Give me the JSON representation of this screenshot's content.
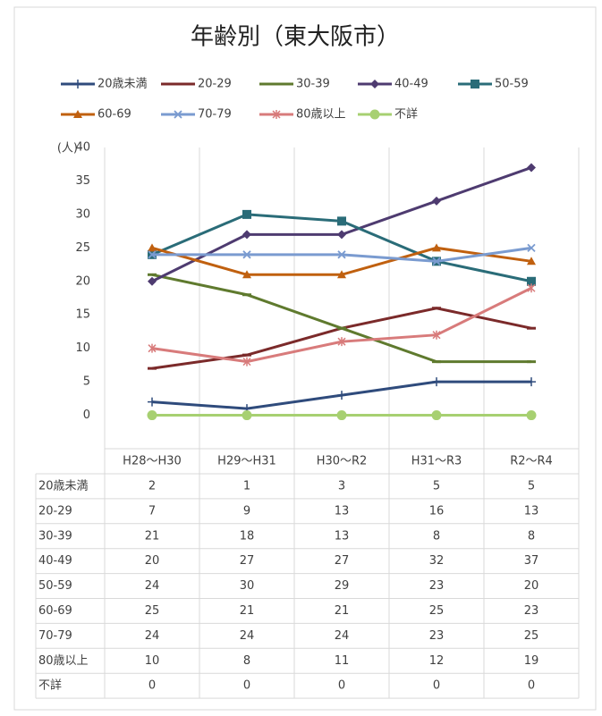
{
  "chart_data": {
    "type": "line",
    "title": "年齢別（東大阪市）",
    "ylabel": "(人)",
    "categories": [
      "H28～H30",
      "H29～H31",
      "H30～R2",
      "H31～R3",
      "R2～R4"
    ],
    "ylim": [
      -5,
      40
    ],
    "yticks": [
      0,
      5,
      10,
      15,
      20,
      25,
      30,
      35,
      40
    ],
    "grid": false,
    "legend": "top",
    "series": [
      {
        "name": "20歳未満",
        "color": "#2f4b7c",
        "marker": "plus",
        "values": [
          2,
          1,
          3,
          5,
          5
        ]
      },
      {
        "name": "20-29",
        "color": "#7b2a2a",
        "marker": "dash",
        "values": [
          7,
          9,
          13,
          16,
          13
        ]
      },
      {
        "name": "30-39",
        "color": "#5f7a2e",
        "marker": "dash",
        "values": [
          21,
          18,
          13,
          8,
          8
        ]
      },
      {
        "name": "40-49",
        "color": "#4e3b70",
        "marker": "diamond",
        "values": [
          20,
          27,
          27,
          32,
          37
        ]
      },
      {
        "name": "50-59",
        "color": "#2a6c78",
        "marker": "square",
        "values": [
          24,
          30,
          29,
          23,
          20
        ]
      },
      {
        "name": "60-69",
        "color": "#c0600f",
        "marker": "triangle",
        "values": [
          25,
          21,
          21,
          25,
          23
        ]
      },
      {
        "name": "70-79",
        "color": "#7a9bd0",
        "marker": "x",
        "values": [
          24,
          24,
          24,
          23,
          25
        ]
      },
      {
        "name": "80歳以上",
        "color": "#d87b7b",
        "marker": "star",
        "values": [
          10,
          8,
          11,
          12,
          19
        ]
      },
      {
        "name": "不詳",
        "color": "#a7d071",
        "marker": "circle",
        "values": [
          0,
          0,
          0,
          0,
          0
        ]
      }
    ]
  }
}
